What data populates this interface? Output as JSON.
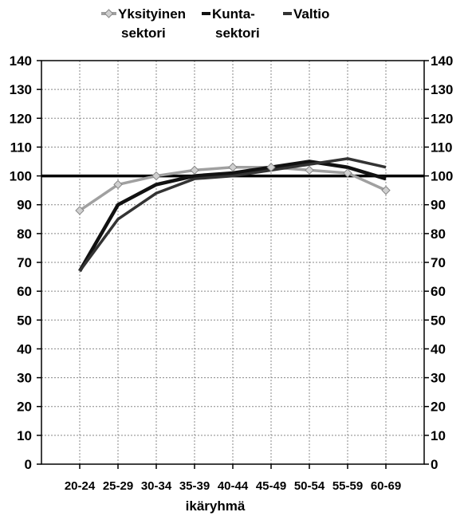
{
  "chart_data": {
    "type": "line",
    "xlabel": "ikäryhmä",
    "ylabel": "",
    "ylim": [
      0,
      140
    ],
    "yticks": [
      0,
      10,
      20,
      30,
      40,
      50,
      60,
      70,
      80,
      90,
      100,
      110,
      120,
      130,
      140
    ],
    "categories": [
      "20-24",
      "25-29",
      "30-34",
      "35-39",
      "40-44",
      "45-49",
      "50-54",
      "55-59",
      "60-69"
    ],
    "grid": true,
    "legend_position": "top",
    "reference_line": 100,
    "series": [
      {
        "name_lines": [
          "Yksityinen",
          "sektori"
        ],
        "color": "#a0a0a0",
        "marker": "diamond",
        "values": [
          88,
          97,
          100,
          102,
          103,
          103,
          102,
          101,
          95
        ]
      },
      {
        "name_lines": [
          "Kunta-",
          "sektori"
        ],
        "color": "#111111",
        "marker": "none",
        "values": [
          67,
          90,
          97,
          100,
          101,
          103,
          105,
          103,
          99
        ]
      },
      {
        "name_lines": [
          "Valtio"
        ],
        "color": "#333333",
        "marker": "none",
        "values": [
          67,
          85,
          94,
          99,
          100,
          102,
          104,
          106,
          103
        ]
      }
    ]
  }
}
